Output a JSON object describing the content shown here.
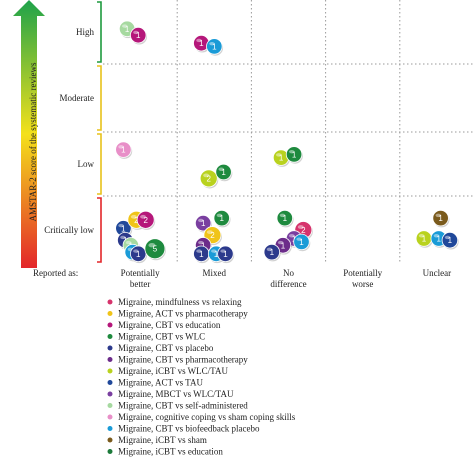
{
  "chart_data": {
    "type": "bubble",
    "title": "",
    "ylabel": "AMSTAR-2 score of the systematic reviews",
    "y_categories": [
      "High",
      "Moderate",
      "Low",
      "Critically low"
    ],
    "x_prefix": "Reported as:",
    "x_categories": [
      "Potentially better",
      "Mixed",
      "No difference",
      "Potentially worse",
      "Unclear"
    ],
    "grid": true,
    "legend_position": "bottom",
    "series": [
      {
        "name": "Migraine, mindfulness vs relaxing",
        "color": "#d6336c"
      },
      {
        "name": "Migraine, ACT vs pharmacotherapy",
        "color": "#f0c419"
      },
      {
        "name": "Migraine, CBT vs education",
        "color": "#b5177a"
      },
      {
        "name": "Migraine, CBT vs WLC",
        "color": "#1e8a3e"
      },
      {
        "name": "Migraine, CBT vs placebo",
        "color": "#2c3a8c"
      },
      {
        "name": "Migraine, CBT vs pharmacotherapy",
        "color": "#6c2c8a"
      },
      {
        "name": "Migraine, iCBT vs WLC/TAU",
        "color": "#b9d21f"
      },
      {
        "name": "Migraine, ACT vs TAU",
        "color": "#20489a"
      },
      {
        "name": "Migraine, MBCT vs WLC/TAU",
        "color": "#7a3fa0"
      },
      {
        "name": "Migraine, CBT vs self-administered",
        "color": "#a6d9a0"
      },
      {
        "name": "Migraine, cognitive coping vs sham coping skills",
        "color": "#e88fc8"
      },
      {
        "name": "Migraine, CBT vs biofeedback placebo",
        "color": "#1a9bd7"
      },
      {
        "name": "Migraine, iCBT vs sham",
        "color": "#7a5a1c"
      },
      {
        "name": "Migraine, iCBT vs education",
        "color": "#1c7a3a"
      }
    ],
    "bubbles": [
      {
        "row": "High",
        "col": "Potentially better",
        "dx": -0.35,
        "dy": -0.1,
        "count": 1,
        "series": 9
      },
      {
        "row": "High",
        "col": "Potentially better",
        "dx": -0.05,
        "dy": 0.1,
        "count": 1,
        "series": 2
      },
      {
        "row": "High",
        "col": "Mixed",
        "dx": -0.35,
        "dy": 0.35,
        "count": 1,
        "series": 2
      },
      {
        "row": "High",
        "col": "Mixed",
        "dx": 0.0,
        "dy": 0.45,
        "count": 1,
        "series": 11
      },
      {
        "row": "Low",
        "col": "Potentially better",
        "dx": -0.45,
        "dy": -0.45,
        "count": 1,
        "series": 10
      },
      {
        "row": "Low",
        "col": "Mixed",
        "dx": -0.15,
        "dy": 0.45,
        "count": 2,
        "series": 6
      },
      {
        "row": "Low",
        "col": "Mixed",
        "dx": 0.25,
        "dy": 0.25,
        "count": 1,
        "series": 3
      },
      {
        "row": "Low",
        "col": "No difference",
        "dx": -0.2,
        "dy": -0.2,
        "count": 1,
        "series": 6
      },
      {
        "row": "Low",
        "col": "No difference",
        "dx": 0.15,
        "dy": -0.3,
        "count": 1,
        "series": 3
      },
      {
        "row": "Critically low",
        "col": "Potentially better",
        "dx": -0.45,
        "dy": -0.05,
        "count": 1,
        "series": 7
      },
      {
        "row": "Critically low",
        "col": "Potentially better",
        "dx": -0.1,
        "dy": -0.3,
        "count": 2,
        "series": 1
      },
      {
        "row": "Critically low",
        "col": "Potentially better",
        "dx": 0.15,
        "dy": -0.3,
        "count": 2,
        "series": 2
      },
      {
        "row": "Critically low",
        "col": "Potentially better",
        "dx": -0.4,
        "dy": 0.3,
        "count": 1,
        "series": 4
      },
      {
        "row": "Critically low",
        "col": "Potentially better",
        "dx": -0.25,
        "dy": 0.45,
        "count": 1,
        "series": 9
      },
      {
        "row": "Critically low",
        "col": "Potentially better",
        "dx": -0.2,
        "dy": 0.65,
        "count": 1,
        "series": 11
      },
      {
        "row": "Critically low",
        "col": "Potentially better",
        "dx": -0.05,
        "dy": 0.7,
        "count": 1,
        "series": 4
      },
      {
        "row": "Critically low",
        "col": "Potentially better",
        "dx": 0.4,
        "dy": 0.55,
        "count": 5,
        "series": 3
      },
      {
        "row": "Critically low",
        "col": "Mixed",
        "dx": -0.3,
        "dy": -0.2,
        "count": 1,
        "series": 8
      },
      {
        "row": "Critically low",
        "col": "Mixed",
        "dx": 0.2,
        "dy": -0.35,
        "count": 1,
        "series": 3
      },
      {
        "row": "Critically low",
        "col": "Mixed",
        "dx": -0.05,
        "dy": 0.15,
        "count": 2,
        "series": 1
      },
      {
        "row": "Critically low",
        "col": "Mixed",
        "dx": -0.3,
        "dy": 0.45,
        "count": 1,
        "series": 5
      },
      {
        "row": "Critically low",
        "col": "Mixed",
        "dx": -0.35,
        "dy": 0.7,
        "count": 1,
        "series": 4
      },
      {
        "row": "Critically low",
        "col": "Mixed",
        "dx": 0.05,
        "dy": 0.7,
        "count": 1,
        "series": 11
      },
      {
        "row": "Critically low",
        "col": "Mixed",
        "dx": 0.3,
        "dy": 0.7,
        "count": 1,
        "series": 4
      },
      {
        "row": "Critically low",
        "col": "No difference",
        "dx": -0.1,
        "dy": -0.35,
        "count": 1,
        "series": 3
      },
      {
        "row": "Critically low",
        "col": "No difference",
        "dx": 0.4,
        "dy": 0.0,
        "count": 2,
        "series": 0
      },
      {
        "row": "Critically low",
        "col": "No difference",
        "dx": 0.15,
        "dy": 0.25,
        "count": 1,
        "series": 8
      },
      {
        "row": "Critically low",
        "col": "No difference",
        "dx": 0.35,
        "dy": 0.35,
        "count": 1,
        "series": 11
      },
      {
        "row": "Critically low",
        "col": "No difference",
        "dx": -0.15,
        "dy": 0.45,
        "count": 1,
        "series": 5
      },
      {
        "row": "Critically low",
        "col": "No difference",
        "dx": -0.45,
        "dy": 0.65,
        "count": 1,
        "series": 4
      },
      {
        "row": "Critically low",
        "col": "Unclear",
        "dx": 0.1,
        "dy": -0.35,
        "count": 1,
        "series": 12
      },
      {
        "row": "Critically low",
        "col": "Unclear",
        "dx": -0.35,
        "dy": 0.25,
        "count": 1,
        "series": 6
      },
      {
        "row": "Critically low",
        "col": "Unclear",
        "dx": 0.05,
        "dy": 0.25,
        "count": 1,
        "series": 11
      },
      {
        "row": "Critically low",
        "col": "Unclear",
        "dx": 0.35,
        "dy": 0.3,
        "count": 1,
        "series": 7
      }
    ]
  }
}
